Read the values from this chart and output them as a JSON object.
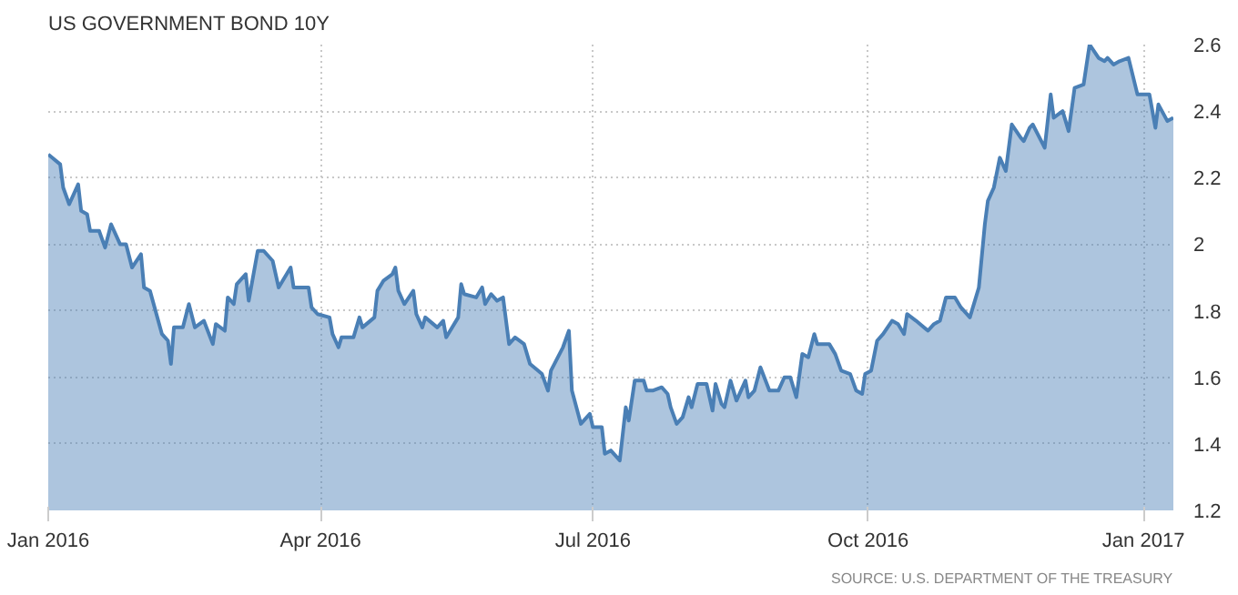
{
  "chart_data": {
    "type": "area",
    "title": "US GOVERNMENT BOND 10Y",
    "annotations": [
      "SOURCE: U.S. DEPARTMENT OF THE TREASURY"
    ],
    "x": [
      "2016-01-01",
      "2016-01-05",
      "2016-01-06",
      "2016-01-08",
      "2016-01-11",
      "2016-01-12",
      "2016-01-14",
      "2016-01-15",
      "2016-01-18",
      "2016-01-20",
      "2016-01-22",
      "2016-01-25",
      "2016-01-27",
      "2016-01-29",
      "2016-02-01",
      "2016-02-02",
      "2016-02-04",
      "2016-02-08",
      "2016-02-10",
      "2016-02-11",
      "2016-02-12",
      "2016-02-15",
      "2016-02-17",
      "2016-02-19",
      "2016-02-22",
      "2016-02-25",
      "2016-02-26",
      "2016-02-29",
      "2016-03-01",
      "2016-03-03",
      "2016-03-04",
      "2016-03-07",
      "2016-03-08",
      "2016-03-11",
      "2016-03-13",
      "2016-03-16",
      "2016-03-18",
      "2016-03-22",
      "2016-03-23",
      "2016-03-28",
      "2016-03-29",
      "2016-03-31",
      "2016-04-04",
      "2016-04-05",
      "2016-04-07",
      "2016-04-08",
      "2016-04-12",
      "2016-04-14",
      "2016-04-15",
      "2016-04-19",
      "2016-04-20",
      "2016-04-22",
      "2016-04-25",
      "2016-04-26",
      "2016-04-27",
      "2016-04-29",
      "2016-05-02",
      "2016-05-03",
      "2016-05-05",
      "2016-05-06",
      "2016-05-10",
      "2016-05-12",
      "2016-05-13",
      "2016-05-17",
      "2016-05-18",
      "2016-05-19",
      "2016-05-23",
      "2016-05-25",
      "2016-05-26",
      "2016-05-28",
      "2016-05-30",
      "2016-06-01",
      "2016-06-03",
      "2016-06-05",
      "2016-06-08",
      "2016-06-10",
      "2016-06-14",
      "2016-06-16",
      "2016-06-17",
      "2016-06-21",
      "2016-06-23",
      "2016-06-24",
      "2016-06-27",
      "2016-06-30",
      "2016-07-01",
      "2016-07-04",
      "2016-07-05",
      "2016-07-07",
      "2016-07-10",
      "2016-07-12",
      "2016-07-13",
      "2016-07-15",
      "2016-07-18",
      "2016-07-19",
      "2016-07-21",
      "2016-07-24",
      "2016-07-26",
      "2016-07-27",
      "2016-07-29",
      "2016-07-31",
      "2016-08-02",
      "2016-08-03",
      "2016-08-05",
      "2016-08-08",
      "2016-08-10",
      "2016-08-11",
      "2016-08-13",
      "2016-08-14",
      "2016-08-16",
      "2016-08-18",
      "2016-08-21",
      "2016-08-22",
      "2016-08-24",
      "2016-08-26",
      "2016-08-29",
      "2016-09-01",
      "2016-09-03",
      "2016-09-05",
      "2016-09-07",
      "2016-09-09",
      "2016-09-11",
      "2016-09-13",
      "2016-09-14",
      "2016-09-18",
      "2016-09-20",
      "2016-09-22",
      "2016-09-25",
      "2016-09-27",
      "2016-09-29",
      "2016-09-30",
      "2016-10-02",
      "2016-10-04",
      "2016-10-06",
      "2016-10-09",
      "2016-10-11",
      "2016-10-13",
      "2016-10-14",
      "2016-10-17",
      "2016-10-21",
      "2016-10-23",
      "2016-10-25",
      "2016-10-27",
      "2016-10-30",
      "2016-11-01",
      "2016-11-04",
      "2016-11-05",
      "2016-11-07",
      "2016-11-09",
      "2016-11-10",
      "2016-11-12",
      "2016-11-14",
      "2016-11-16",
      "2016-11-18",
      "2016-11-21",
      "2016-11-22",
      "2016-11-24",
      "2016-11-25",
      "2016-11-29",
      "2016-12-01",
      "2016-12-02",
      "2016-12-05",
      "2016-12-07",
      "2016-12-09",
      "2016-12-12",
      "2016-12-14",
      "2016-12-17",
      "2016-12-19",
      "2016-12-20",
      "2016-12-22",
      "2016-12-24",
      "2016-12-27",
      "2016-12-30",
      "2017-01-03",
      "2017-01-05",
      "2017-01-06",
      "2017-01-09",
      "2017-01-11"
    ],
    "series": [
      {
        "color": "#4a7fb5",
        "values": [
          2.27,
          2.24,
          2.17,
          2.12,
          2.18,
          2.1,
          2.09,
          2.04,
          2.04,
          1.99,
          2.06,
          2.0,
          2.0,
          1.93,
          1.97,
          1.87,
          1.86,
          1.73,
          1.71,
          1.64,
          1.75,
          1.75,
          1.82,
          1.75,
          1.77,
          1.7,
          1.76,
          1.74,
          1.84,
          1.82,
          1.88,
          1.91,
          1.83,
          1.98,
          1.98,
          1.95,
          1.87,
          1.93,
          1.87,
          1.87,
          1.81,
          1.79,
          1.78,
          1.73,
          1.69,
          1.72,
          1.72,
          1.78,
          1.75,
          1.78,
          1.86,
          1.89,
          1.91,
          1.93,
          1.86,
          1.82,
          1.86,
          1.79,
          1.75,
          1.78,
          1.75,
          1.77,
          1.72,
          1.78,
          1.88,
          1.85,
          1.84,
          1.87,
          1.82,
          1.85,
          1.83,
          1.84,
          1.7,
          1.72,
          1.7,
          1.64,
          1.61,
          1.56,
          1.62,
          1.69,
          1.74,
          1.56,
          1.46,
          1.49,
          1.45,
          1.45,
          1.37,
          1.38,
          1.35,
          1.51,
          1.47,
          1.59,
          1.59,
          1.56,
          1.56,
          1.57,
          1.55,
          1.51,
          1.46,
          1.48,
          1.54,
          1.51,
          1.58,
          1.58,
          1.5,
          1.58,
          1.52,
          1.51,
          1.59,
          1.53,
          1.59,
          1.54,
          1.56,
          1.63,
          1.56,
          1.56,
          1.6,
          1.6,
          1.54,
          1.67,
          1.66,
          1.73,
          1.7,
          1.7,
          1.67,
          1.62,
          1.61,
          1.56,
          1.55,
          1.61,
          1.62,
          1.71,
          1.73,
          1.77,
          1.76,
          1.73,
          1.79,
          1.77,
          1.74,
          1.76,
          1.77,
          1.84,
          1.84,
          1.81,
          1.78,
          1.81,
          1.87,
          2.06,
          2.13,
          2.17,
          2.26,
          2.22,
          2.36,
          2.32,
          2.31,
          2.35,
          2.36,
          2.29,
          2.45,
          2.38,
          2.4,
          2.34,
          2.47,
          2.48,
          2.6,
          2.56,
          2.55,
          2.56,
          2.54,
          2.55,
          2.56,
          2.45,
          2.45,
          2.35,
          2.42,
          2.37,
          2.38
        ]
      }
    ],
    "xlim": [
      "2016-01-01",
      "2017-01-11"
    ],
    "xticks": [
      {
        "value": "2016-01-01",
        "label": "Jan 2016"
      },
      {
        "value": "2016-04-01",
        "label": "Apr 2016"
      },
      {
        "value": "2016-07-01",
        "label": "Jul 2016"
      },
      {
        "value": "2016-10-01",
        "label": "Oct 2016"
      },
      {
        "value": "2017-01-01",
        "label": "Jan 2017"
      }
    ],
    "ylim": [
      1.2,
      2.6
    ],
    "yticks": [
      1.2,
      1.4,
      1.6,
      1.8,
      2,
      2.2,
      2.4,
      2.6
    ],
    "grid": true
  }
}
